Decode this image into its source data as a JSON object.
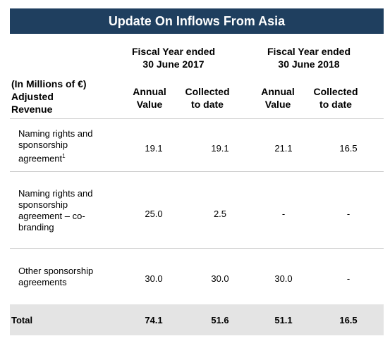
{
  "title": "Update On Inflows From Asia",
  "fiscal_years": [
    {
      "line1": "Fiscal Year ended",
      "line2": "30 June 2017"
    },
    {
      "line1": "Fiscal Year ended",
      "line2": "30 June 2018"
    }
  ],
  "row_header": {
    "line1": "(In Millions of €)",
    "line2": "Adjusted",
    "line3": "Revenue"
  },
  "columns": [
    {
      "line1": "Annual",
      "line2": "Value"
    },
    {
      "line1": "Collected",
      "line2": "to date"
    },
    {
      "line1": "Annual",
      "line2": "Value"
    },
    {
      "line1": "Collected",
      "line2": "to date"
    }
  ],
  "rows": [
    {
      "lines": [
        "Naming rights and",
        "sponsorship",
        "agreement"
      ],
      "footnote": "1",
      "values": [
        "19.1",
        "19.1",
        "21.1",
        "16.5"
      ]
    },
    {
      "lines": [
        "Naming rights and",
        "sponsorship",
        "agreement – co-",
        "branding"
      ],
      "values": [
        "25.0",
        "2.5",
        "-",
        "-"
      ]
    },
    {
      "lines": [
        "Other sponsorship",
        "agreements"
      ],
      "values": [
        "30.0",
        "30.0",
        "30.0",
        "-"
      ]
    }
  ],
  "total": {
    "label": "Total",
    "values": [
      "74.1",
      "51.6",
      "51.1",
      "16.5"
    ]
  }
}
